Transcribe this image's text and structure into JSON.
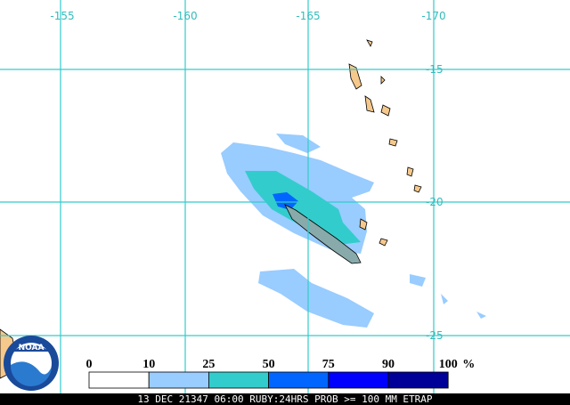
{
  "map": {
    "lon_labels": [
      "-155",
      "-160",
      "-165",
      "-170"
    ],
    "lat_labels": [
      "-15",
      "-20",
      "-25"
    ]
  },
  "legend": {
    "labels": [
      "0",
      "10",
      "25",
      "50",
      "75",
      "90",
      "100"
    ],
    "unit": "%",
    "colors": [
      "#ffffff",
      "#99ccff",
      "#33cccc",
      "#0066ff",
      "#0000ff",
      "#000099"
    ]
  },
  "footer": "13 DEC 21347 06:00 RUBY:24HRS PROB >= 100 MM ETRAP",
  "logo": "NOAA"
}
